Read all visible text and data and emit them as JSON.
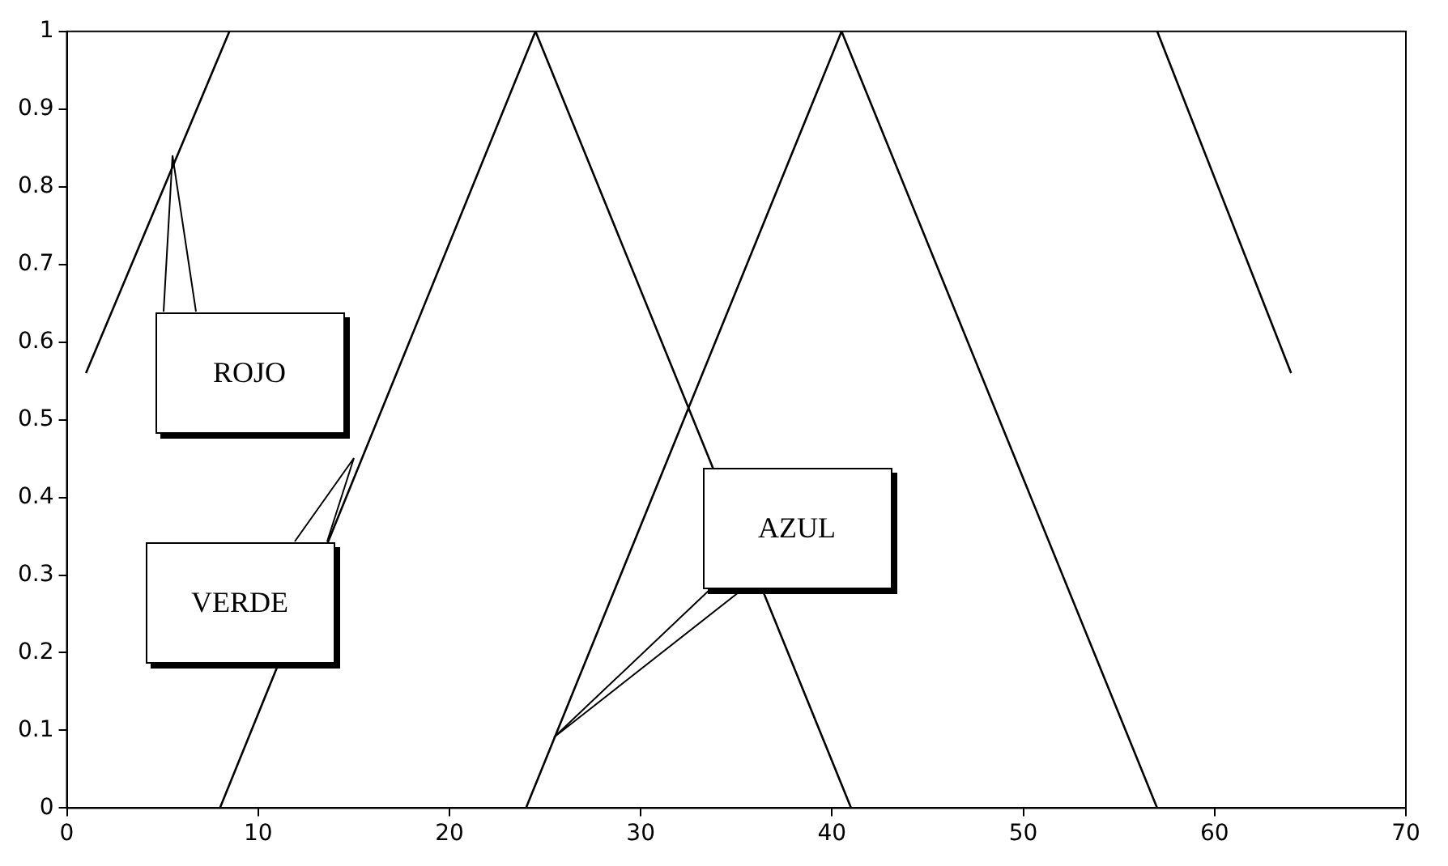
{
  "chart_data": {
    "type": "line",
    "xlim": [
      0,
      70
    ],
    "xticks": [
      0,
      10,
      20,
      30,
      40,
      50,
      60,
      70
    ],
    "ylim": [
      0,
      1
    ],
    "yticks": [
      0,
      0.1,
      0.2,
      0.3,
      0.4,
      0.5,
      0.6,
      0.7,
      0.8,
      0.9,
      1
    ],
    "grid": false,
    "legend": false,
    "marker": "none",
    "line_style": "solid",
    "series": [
      {
        "color": "#000000",
        "x": [
          1,
          8.5
        ],
        "values": [
          0.56,
          1
        ]
      },
      {
        "color": "#000000",
        "x": [
          57,
          64
        ],
        "values": [
          1,
          0.56
        ]
      },
      {
        "color": "#000000",
        "x": [
          8,
          24.5,
          41
        ],
        "values": [
          0,
          1,
          0
        ]
      },
      {
        "color": "#000000",
        "x": [
          24,
          40.5,
          57
        ],
        "values": [
          0,
          1,
          0
        ]
      }
    ],
    "annotations": [
      "ROJO",
      "VERDE",
      "AZUL"
    ]
  }
}
